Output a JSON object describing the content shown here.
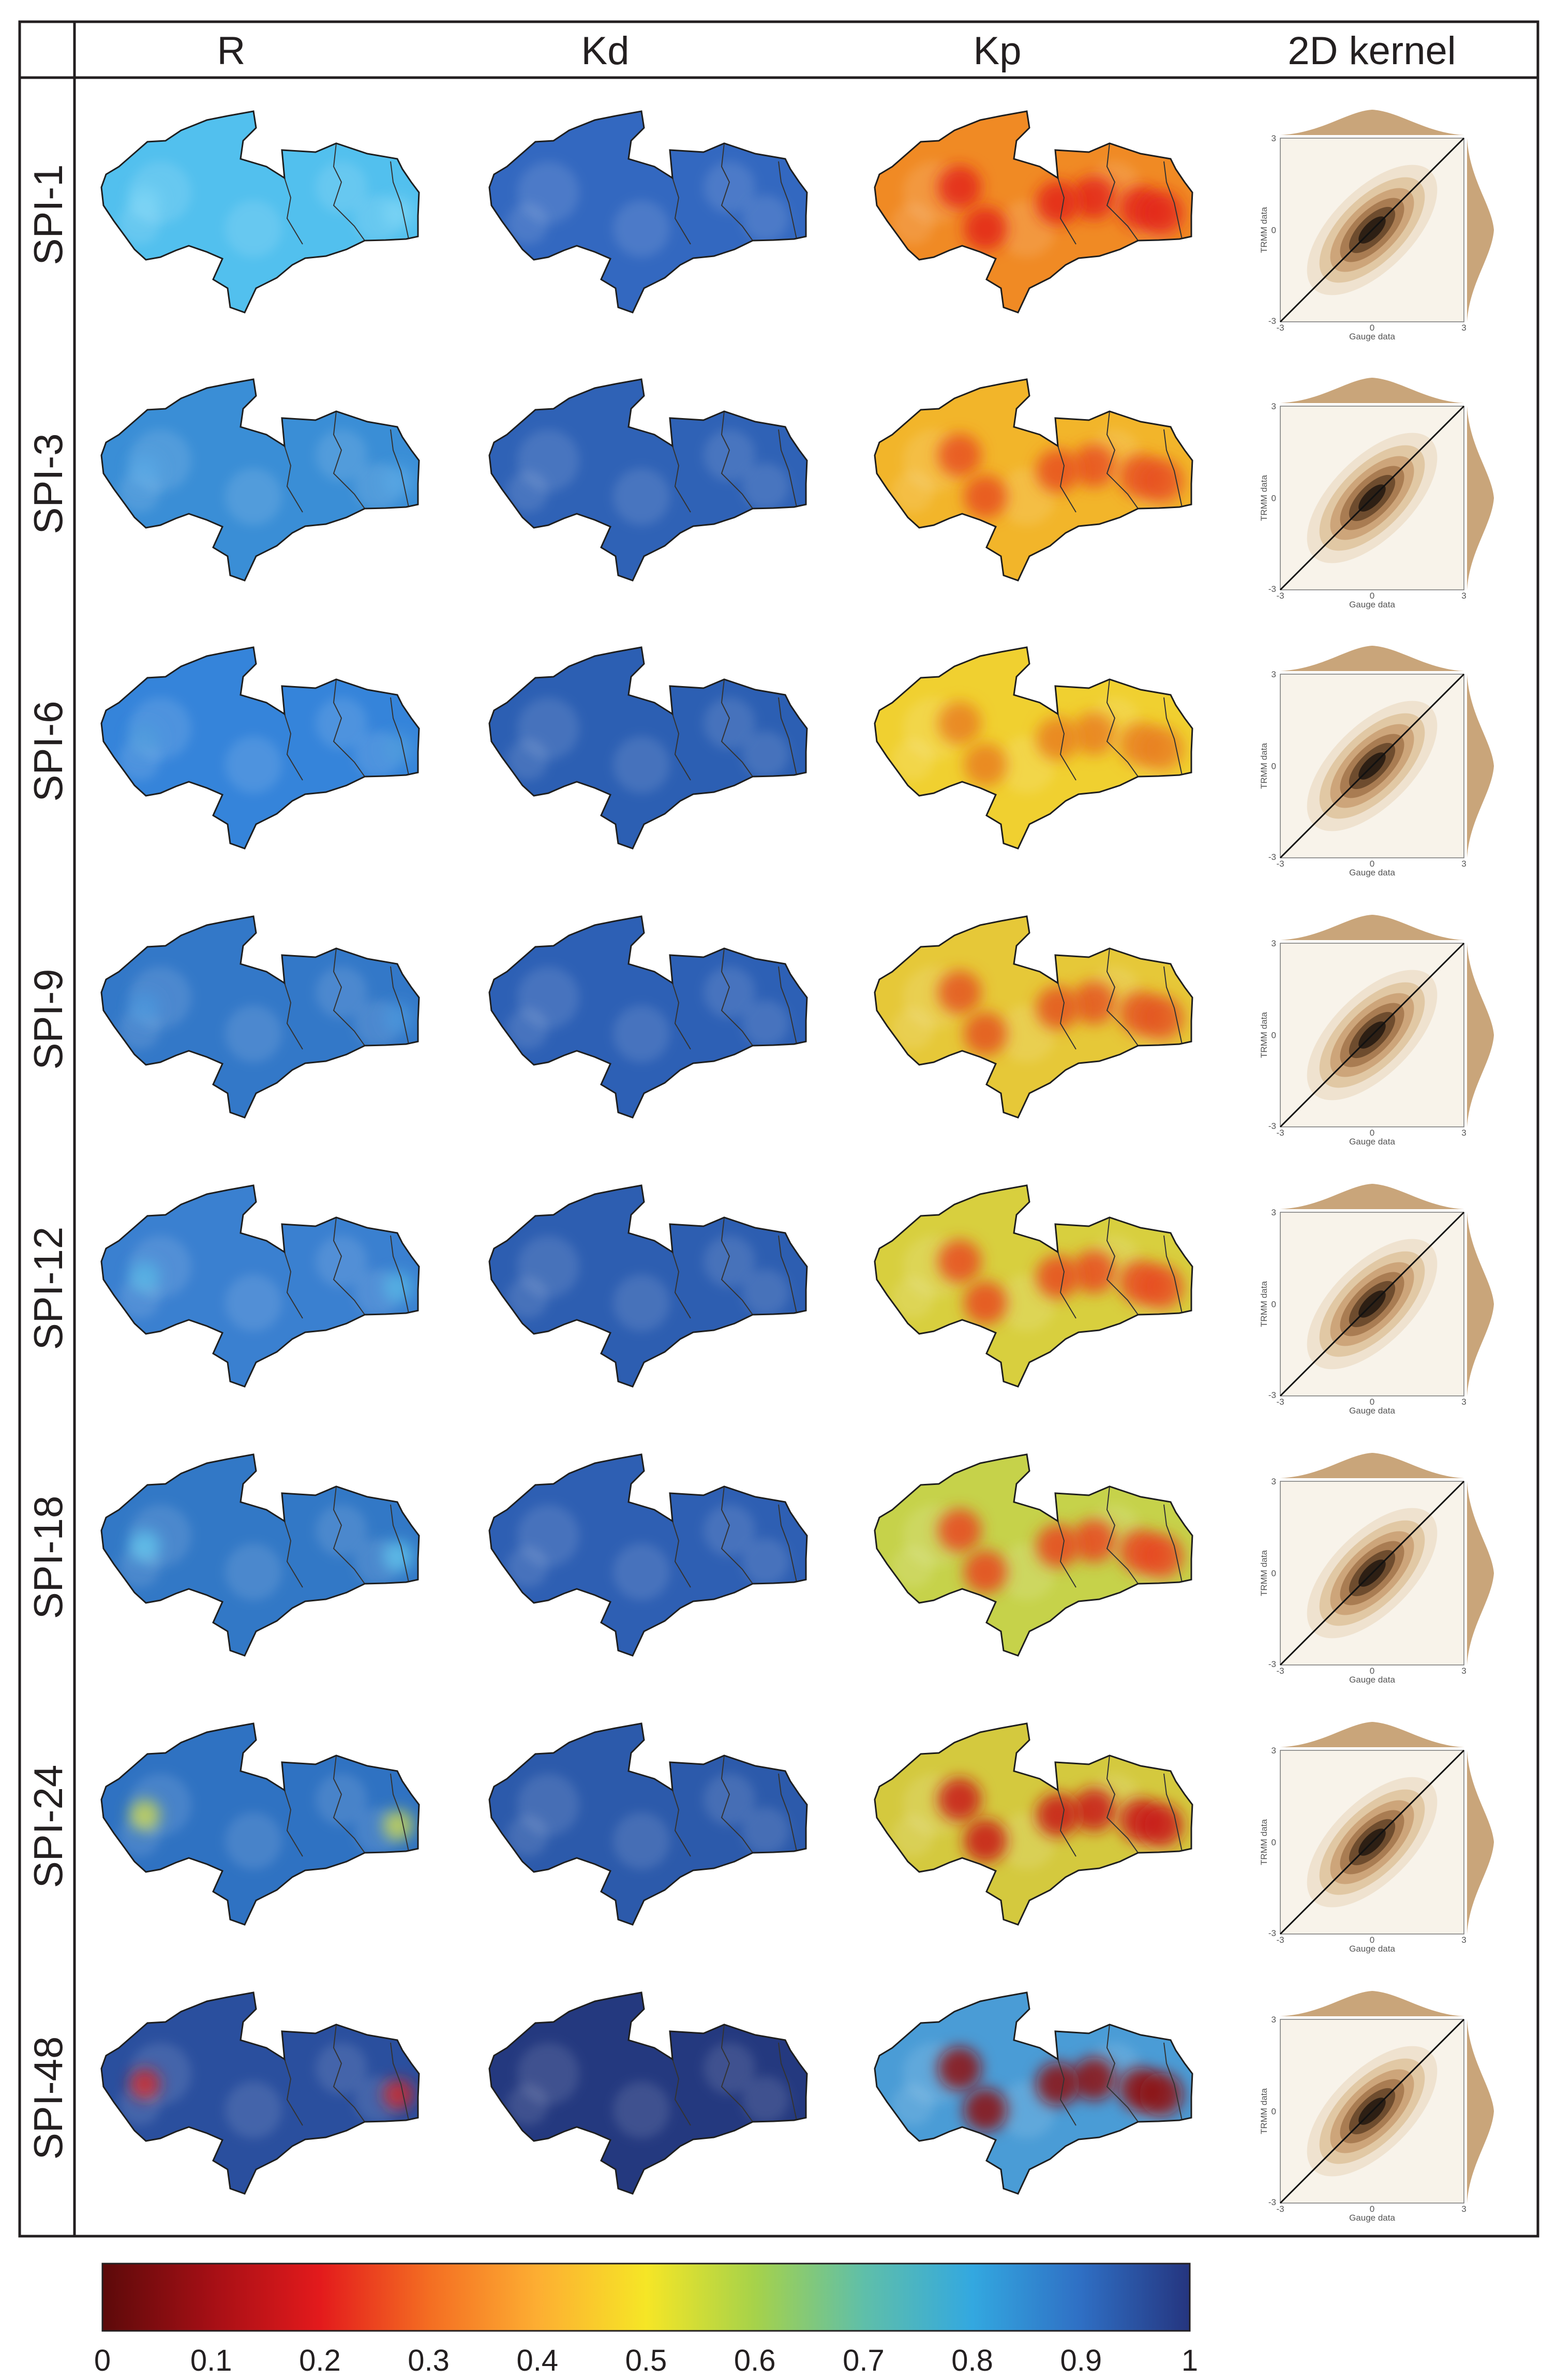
{
  "columns": [
    "R",
    "Kd",
    "Kp",
    "2D kernel"
  ],
  "rows": [
    "SPI-1",
    "SPI-3",
    "SPI-6",
    "SPI-9",
    "SPI-12",
    "SPI-18",
    "SPI-24",
    "SPI-48"
  ],
  "kernel_plot": {
    "x_axis_label": "Gauge data",
    "y_axis_label": "TRMM data",
    "x_ticks": [
      "-3",
      "0",
      "3"
    ],
    "y_ticks": [
      "3",
      "0",
      "-3"
    ]
  },
  "colorbar": {
    "ticks": [
      "0",
      "0.1",
      "0.2",
      "0.3",
      "0.4",
      "0.5",
      "0.6",
      "0.7",
      "0.8",
      "0.9",
      "1"
    ],
    "colors": [
      "#5c0a0a",
      "#a50f15",
      "#e31a1c",
      "#f46d22",
      "#fdae32",
      "#f6e626",
      "#a6d24a",
      "#5fbfa9",
      "#33a8e0",
      "#2f6fc4",
      "#25357f"
    ]
  },
  "map_levels": {
    "R": [
      "#52c0ee",
      "#3a8ed6",
      "#3584da",
      "#3378c8",
      "#3a80d0",
      "#3278c6",
      "#2f72c2",
      "#2a4f9e"
    ],
    "Kd": [
      "#3368c0",
      "#2f62b6",
      "#2c5fb3",
      "#2d60b5",
      "#2d5eb1",
      "#2e5fb3",
      "#2c5aab",
      "#24397f"
    ],
    "Kp": [
      "#f08a24",
      "#f2b52a",
      "#f0d030",
      "#e6c838",
      "#d8cf3e",
      "#c6d24a",
      "#d4c93e",
      "#4a9cd6"
    ]
  },
  "map_hotspots": {
    "Kp": [
      "#e3241b",
      "#e8501e",
      "#e97f22",
      "#e4541f",
      "#e84a1d",
      "#e8451d",
      "#c8151a",
      "#8e0c12"
    ],
    "R": [
      "#7fd6f6",
      "#5aa8e4",
      "#4f9cdc",
      "#4a97dc",
      "#56b8e6",
      "#63c8ee",
      "#d8e048",
      "#e0241c"
    ]
  },
  "kernel_fill": "#c9a57a"
}
